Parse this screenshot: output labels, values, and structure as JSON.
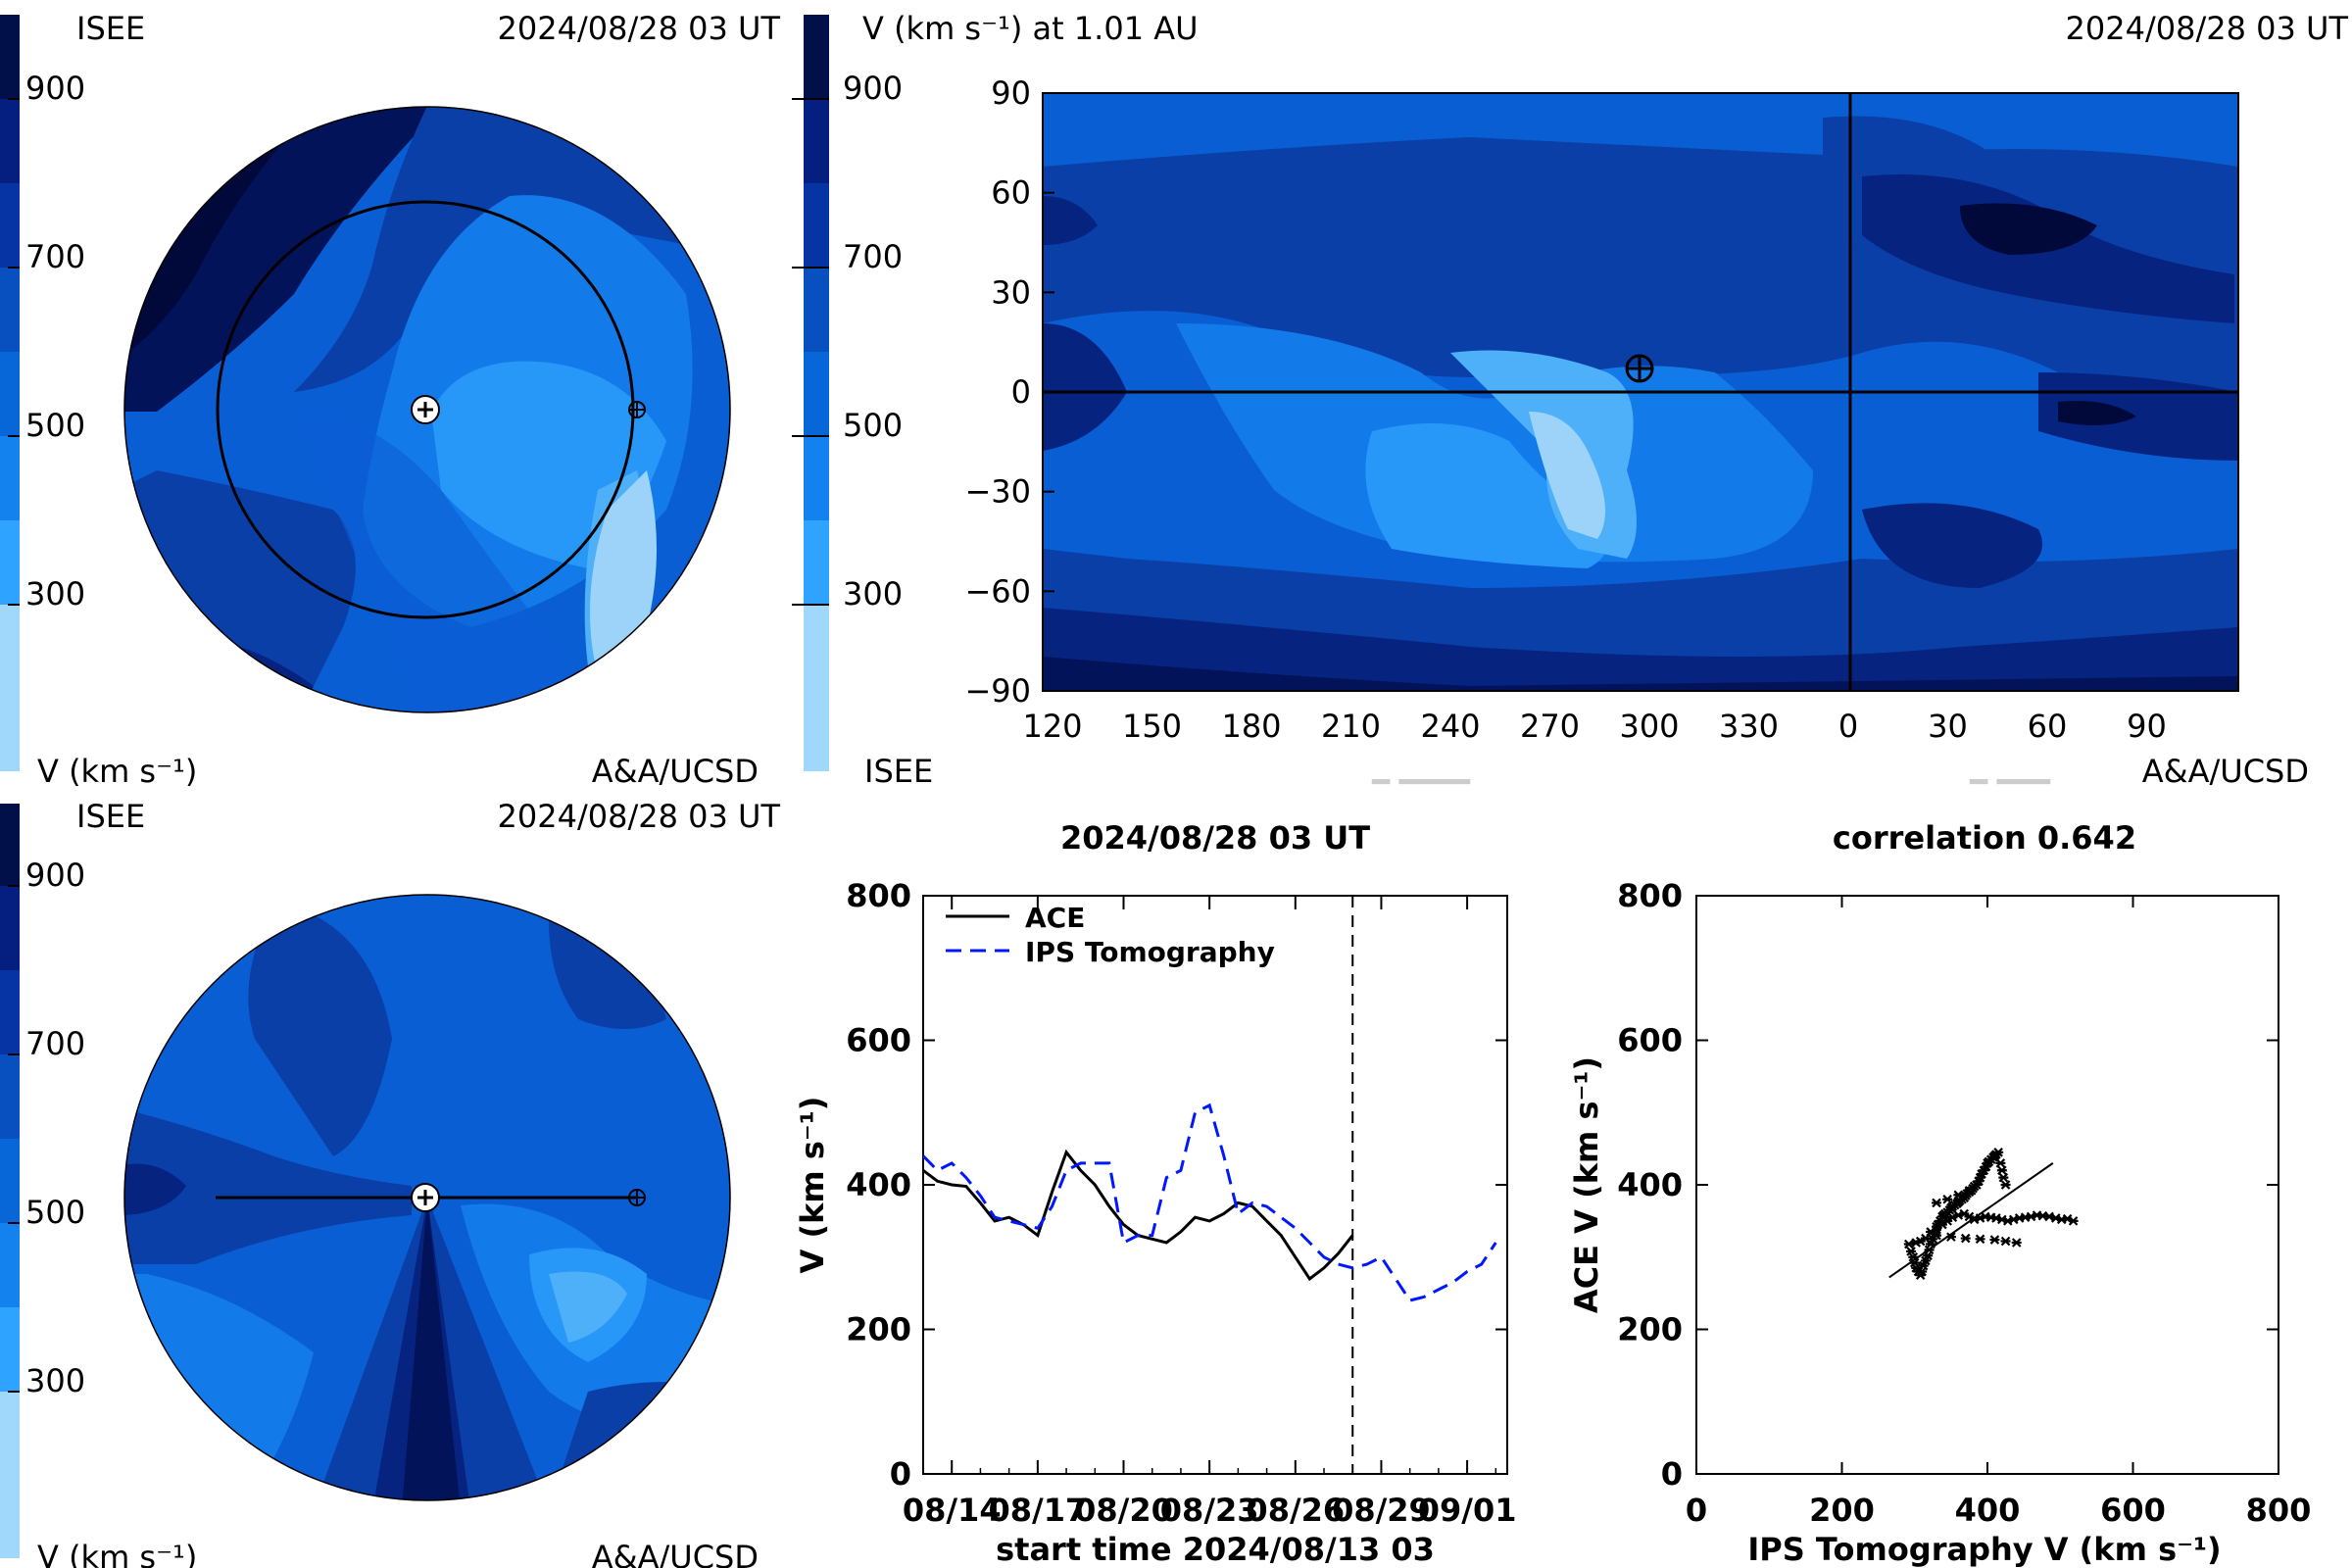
{
  "palette": {
    "cb": [
      "#9fd8fb",
      "#2ea3ff",
      "#1482ee",
      "#0766d8",
      "#0850c0",
      "#0734a4",
      "#051f80",
      "#02104a"
    ],
    "contour": [
      "#01093a",
      "#02135a",
      "#05237f",
      "#0a3fa8",
      "#0a5ed4",
      "#137ae9",
      "#2797f8",
      "#4fb0fa",
      "#9dd3f9"
    ]
  },
  "panels": {
    "top_left": {
      "agency_left": "ISEE",
      "date": "2024/08/28 03 UT",
      "colorbar_ticks": [
        "900",
        "700",
        "500",
        "300"
      ],
      "unit_label": "V (km s⁻¹)",
      "credit": "A&A/UCSD"
    },
    "top_right": {
      "title": "V (km s⁻¹) at 1.01 AU",
      "date": "2024/08/28 03 UT",
      "colorbar_ticks": [
        "900",
        "700",
        "500",
        "300"
      ],
      "agency": "ISEE",
      "credit": "A&A/UCSD",
      "x_ticks": [
        "120",
        "150",
        "180",
        "210",
        "240",
        "270",
        "300",
        "330",
        "0",
        "30",
        "60",
        "90"
      ],
      "y_ticks": [
        "90",
        "60",
        "30",
        "0",
        "−30",
        "−60",
        "−90"
      ]
    },
    "bottom_left": {
      "agency_left": "ISEE",
      "date": "2024/08/28 03 UT",
      "colorbar_ticks": [
        "900",
        "700",
        "500",
        "300"
      ],
      "unit_label": "V (km s⁻¹)",
      "credit": "A&A/UCSD"
    }
  },
  "chart_data": [
    {
      "type": "line",
      "title": "2024/08/28 03 UT",
      "xlabel": "start time 2024/08/13 03",
      "ylabel": "V (km s⁻¹)",
      "ylim": [
        0,
        800
      ],
      "xlim": [
        0,
        20.4
      ],
      "x_tick_labels": [
        "08/14",
        "08/17",
        "08/20",
        "08/23",
        "08/26",
        "08/29",
        "09/01"
      ],
      "x_ticks_at": [
        1,
        4,
        7,
        10,
        13,
        16,
        19
      ],
      "y_tick_labels": [
        "0",
        "200",
        "400",
        "600",
        "800"
      ],
      "vline_x": 15,
      "legend_position": "top-left",
      "series": [
        {
          "name": "ACE",
          "style": "solid",
          "color": "#000000",
          "x": [
            0,
            0.5,
            1,
            1.5,
            2,
            2.5,
            3,
            3.5,
            4,
            4.5,
            5,
            5.5,
            6,
            6.5,
            7,
            7.5,
            8,
            8.5,
            9,
            9.5,
            10,
            10.5,
            11,
            11.5,
            12,
            12.5,
            13,
            13.5,
            14,
            14.5,
            15
          ],
          "y": [
            420,
            405,
            400,
            398,
            375,
            350,
            355,
            345,
            330,
            390,
            445,
            420,
            400,
            370,
            345,
            330,
            325,
            320,
            335,
            355,
            350,
            360,
            375,
            370,
            350,
            330,
            300,
            270,
            285,
            305,
            330
          ]
        },
        {
          "name": "IPS Tomography",
          "style": "dashed",
          "color": "#0018ff",
          "x": [
            0,
            0.5,
            1,
            1.5,
            2,
            2.5,
            3,
            3.5,
            4,
            4.5,
            5,
            5.5,
            6,
            6.5,
            7,
            7.5,
            8,
            8.5,
            9,
            9.5,
            10,
            10.5,
            11,
            11.5,
            12,
            12.5,
            13,
            13.5,
            14,
            14.5,
            15,
            15.5,
            16,
            16.5,
            17,
            17.5,
            18,
            18.5,
            19,
            19.5,
            20
          ],
          "y": [
            440,
            420,
            430,
            410,
            385,
            355,
            350,
            345,
            340,
            370,
            420,
            430,
            430,
            430,
            320,
            330,
            330,
            410,
            420,
            500,
            510,
            440,
            360,
            375,
            370,
            355,
            340,
            320,
            300,
            290,
            285,
            290,
            300,
            270,
            240,
            245,
            255,
            265,
            280,
            290,
            320
          ]
        }
      ]
    },
    {
      "type": "scatter",
      "title": "correlation 0.642",
      "xlabel": "IPS Tomography V (km s⁻¹)",
      "ylabel": "ACE V (km s⁻¹)",
      "xlim": [
        0,
        800
      ],
      "ylim": [
        0,
        800
      ],
      "x_tick_labels": [
        "0",
        "200",
        "400",
        "600",
        "800"
      ],
      "y_tick_labels": [
        "0",
        "200",
        "400",
        "600",
        "800"
      ],
      "fit_line": {
        "x": [
          265,
          490
        ],
        "y": [
          272,
          430
        ]
      },
      "points": {
        "x": [
          292,
          295,
          298,
          300,
          302,
          305,
          308,
          310,
          312,
          315,
          318,
          320,
          322,
          325,
          328,
          330,
          332,
          335,
          338,
          340,
          342,
          345,
          348,
          350,
          352,
          355,
          358,
          360,
          362,
          365,
          368,
          370,
          372,
          375,
          378,
          380,
          382,
          385,
          388,
          390,
          392,
          395,
          398,
          400,
          402,
          405,
          408,
          410,
          412,
          415,
          418,
          420,
          422,
          425,
          302,
          308,
          315,
          322,
          330,
          338,
          345,
          352,
          360,
          368,
          375,
          382,
          390,
          397,
          405,
          412,
          420,
          428,
          436,
          444,
          452,
          460,
          468,
          476,
          485,
          494,
          502,
          510,
          518,
          330,
          350,
          370,
          390,
          410,
          425,
          440,
          330,
          345,
          360,
          375
        ],
        "y": [
          318,
          308,
          300,
          292,
          285,
          280,
          275,
          280,
          288,
          295,
          302,
          310,
          318,
          325,
          332,
          338,
          345,
          350,
          356,
          358,
          360,
          362,
          365,
          368,
          370,
          372,
          374,
          376,
          378,
          380,
          382,
          385,
          388,
          390,
          392,
          395,
          398,
          400,
          405,
          410,
          415,
          420,
          425,
          430,
          432,
          435,
          438,
          440,
          442,
          445,
          430,
          420,
          410,
          400,
          320,
          322,
          326,
          335,
          342,
          345,
          350,
          355,
          358,
          360,
          356,
          352,
          354,
          356,
          355,
          354,
          352,
          350,
          352,
          354,
          355,
          356,
          358,
          357,
          356,
          354,
          352,
          353,
          350,
          330,
          328,
          326,
          325,
          324,
          322,
          320,
          375,
          380,
          386,
          392
        ]
      }
    }
  ]
}
